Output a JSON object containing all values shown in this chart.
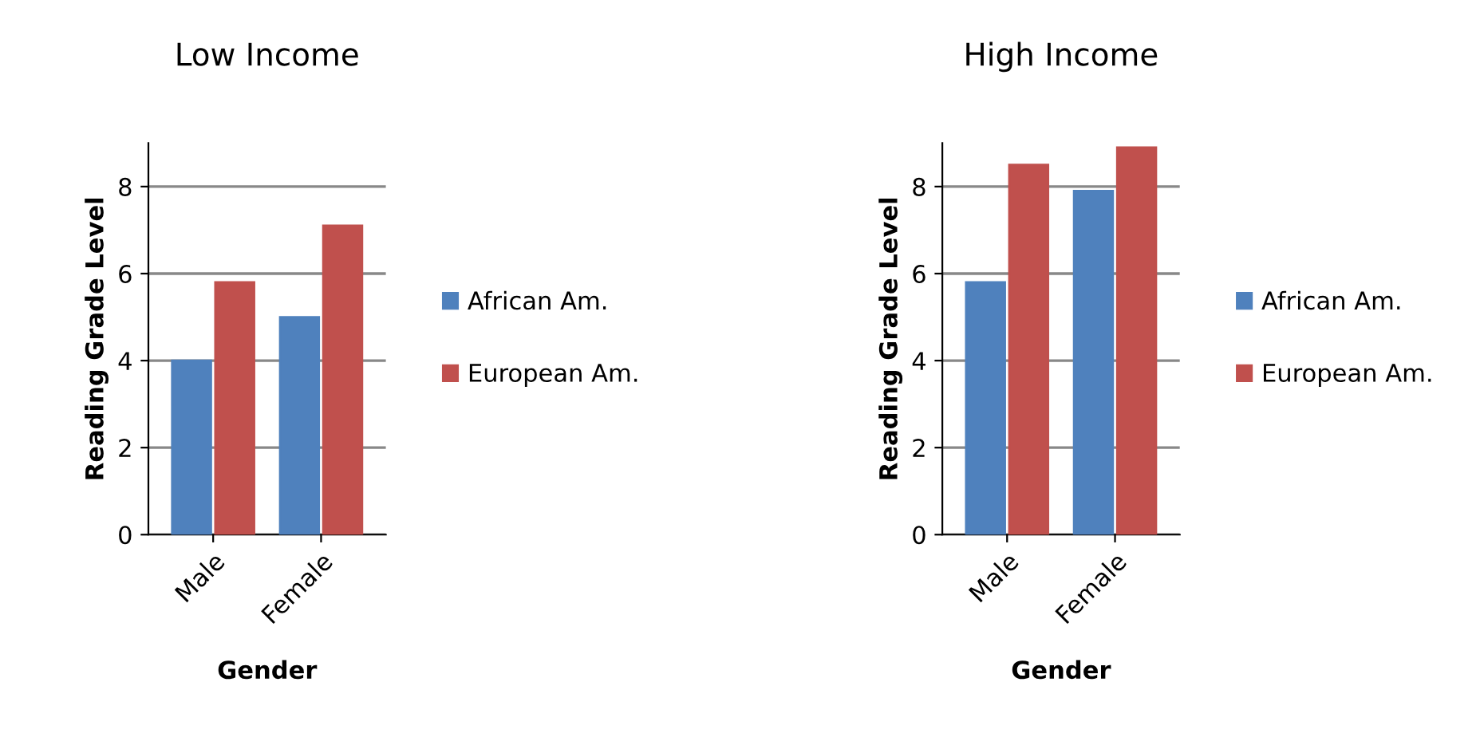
{
  "chart_data": [
    {
      "type": "bar",
      "title": "Low Income",
      "xlabel": "Gender",
      "ylabel": "Reading Grade Level",
      "categories": [
        "Male",
        "Female"
      ],
      "ylim": [
        0,
        9
      ],
      "yticks": [
        0,
        2,
        4,
        6,
        8
      ],
      "grid": "y",
      "legend": "right",
      "series": [
        {
          "name": "African Am.",
          "color": "#4f81bd",
          "values": [
            4,
            5
          ]
        },
        {
          "name": "European Am.",
          "color": "#c0504d",
          "values": [
            5.8,
            7.1
          ]
        }
      ]
    },
    {
      "type": "bar",
      "title": "High Income",
      "xlabel": "Gender",
      "ylabel": "Reading Grade Level",
      "categories": [
        "Male",
        "Female"
      ],
      "ylim": [
        0,
        9
      ],
      "yticks": [
        0,
        2,
        4,
        6,
        8
      ],
      "grid": "y",
      "legend": "right",
      "series": [
        {
          "name": "African Am.",
          "color": "#4f81bd",
          "values": [
            5.8,
            7.9
          ]
        },
        {
          "name": "European Am.",
          "color": "#c0504d",
          "values": [
            8.5,
            8.9
          ]
        }
      ]
    }
  ]
}
